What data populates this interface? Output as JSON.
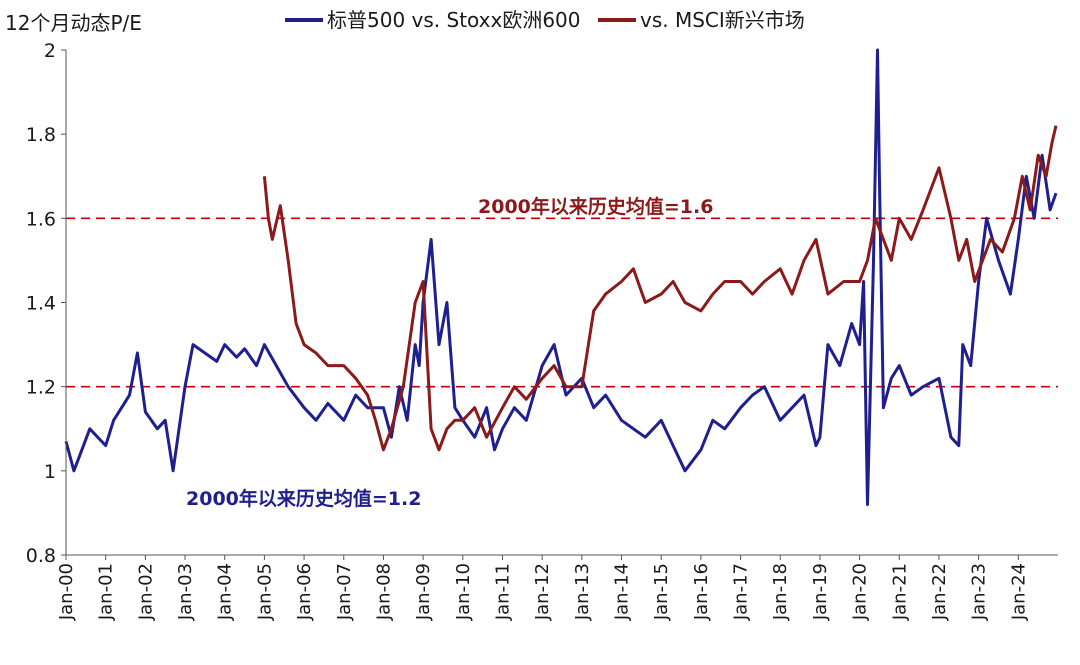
{
  "chart_data": {
    "type": "line",
    "ylabel": "12个月动态P/E",
    "ylim": [
      0.8,
      2.0
    ],
    "yticks": [
      "0.8",
      "1",
      "1.2",
      "1.4",
      "1.6",
      "1.8",
      "2"
    ],
    "yticks_values": [
      0.8,
      1.0,
      1.2,
      1.4,
      1.6,
      1.8,
      2.0
    ],
    "xlim": [
      2000.0,
      2025.0
    ],
    "x_tick_labels": [
      "Jan-00",
      "Jan-01",
      "Jan-02",
      "Jan-03",
      "Jan-04",
      "Jan-05",
      "Jan-06",
      "Jan-07",
      "Jan-08",
      "Jan-09",
      "Jan-10",
      "Jan-11",
      "Jan-12",
      "Jan-13",
      "Jan-14",
      "Jan-15",
      "Jan-16",
      "Jan-17",
      "Jan-18",
      "Jan-19",
      "Jan-20",
      "Jan-21",
      "Jan-22",
      "Jan-23",
      "Jan-24"
    ],
    "x_tick_values": [
      2000,
      2001,
      2002,
      2003,
      2004,
      2005,
      2006,
      2007,
      2008,
      2009,
      2010,
      2011,
      2012,
      2013,
      2014,
      2015,
      2016,
      2017,
      2018,
      2019,
      2020,
      2021,
      2022,
      2023,
      2024
    ],
    "grid": false,
    "legend_position": "top",
    "series": [
      {
        "name": "标普500 vs. Stoxx欧洲600",
        "color": "#1f1f8f",
        "x": [
          2000.0,
          2000.2,
          2000.4,
          2000.6,
          2000.8,
          2001.0,
          2001.2,
          2001.4,
          2001.6,
          2001.8,
          2002.0,
          2002.3,
          2002.5,
          2002.7,
          2003.0,
          2003.2,
          2003.5,
          2003.8,
          2004.0,
          2004.3,
          2004.5,
          2004.8,
          2005.0,
          2005.3,
          2005.6,
          2006.0,
          2006.3,
          2006.6,
          2007.0,
          2007.3,
          2007.6,
          2008.0,
          2008.2,
          2008.4,
          2008.6,
          2008.8,
          2008.9,
          2009.0,
          2009.2,
          2009.4,
          2009.6,
          2009.8,
          2010.0,
          2010.3,
          2010.6,
          2010.8,
          2011.0,
          2011.3,
          2011.6,
          2012.0,
          2012.3,
          2012.6,
          2013.0,
          2013.3,
          2013.6,
          2014.0,
          2014.3,
          2014.6,
          2015.0,
          2015.3,
          2015.6,
          2016.0,
          2016.3,
          2016.6,
          2017.0,
          2017.3,
          2017.6,
          2018.0,
          2018.3,
          2018.6,
          2018.9,
          2019.0,
          2019.2,
          2019.5,
          2019.8,
          2020.0,
          2020.1,
          2020.2,
          2020.35,
          2020.45,
          2020.5,
          2020.6,
          2020.8,
          2021.0,
          2021.3,
          2021.6,
          2022.0,
          2022.3,
          2022.5,
          2022.6,
          2022.8,
          2023.0,
          2023.2,
          2023.5,
          2023.8,
          2024.0,
          2024.2,
          2024.4,
          2024.6,
          2024.8,
          2024.95
        ],
        "values": [
          1.07,
          1.0,
          1.05,
          1.1,
          1.08,
          1.06,
          1.12,
          1.15,
          1.18,
          1.28,
          1.14,
          1.1,
          1.12,
          1.0,
          1.2,
          1.3,
          1.28,
          1.26,
          1.3,
          1.27,
          1.29,
          1.25,
          1.3,
          1.25,
          1.2,
          1.15,
          1.12,
          1.16,
          1.12,
          1.18,
          1.15,
          1.15,
          1.08,
          1.2,
          1.12,
          1.3,
          1.25,
          1.4,
          1.55,
          1.3,
          1.4,
          1.15,
          1.12,
          1.08,
          1.15,
          1.05,
          1.1,
          1.15,
          1.12,
          1.25,
          1.3,
          1.18,
          1.22,
          1.15,
          1.18,
          1.12,
          1.1,
          1.08,
          1.12,
          1.06,
          1.0,
          1.05,
          1.12,
          1.1,
          1.15,
          1.18,
          1.2,
          1.12,
          1.15,
          1.18,
          1.06,
          1.08,
          1.3,
          1.25,
          1.35,
          1.3,
          1.45,
          0.92,
          1.5,
          2.0,
          1.7,
          1.15,
          1.22,
          1.25,
          1.18,
          1.2,
          1.22,
          1.08,
          1.06,
          1.3,
          1.25,
          1.45,
          1.6,
          1.5,
          1.42,
          1.55,
          1.7,
          1.6,
          1.75,
          1.62,
          1.66
        ]
      },
      {
        "name": "vs. MSCI新兴市场",
        "color": "#8b1a1a",
        "x": [
          2005.0,
          2005.1,
          2005.2,
          2005.4,
          2005.6,
          2005.8,
          2006.0,
          2006.3,
          2006.6,
          2007.0,
          2007.3,
          2007.6,
          2007.8,
          2008.0,
          2008.2,
          2008.5,
          2008.8,
          2009.0,
          2009.2,
          2009.4,
          2009.6,
          2009.8,
          2010.0,
          2010.3,
          2010.6,
          2011.0,
          2011.3,
          2011.6,
          2012.0,
          2012.3,
          2012.6,
          2013.0,
          2013.3,
          2013.6,
          2014.0,
          2014.3,
          2014.6,
          2015.0,
          2015.3,
          2015.6,
          2016.0,
          2016.3,
          2016.6,
          2017.0,
          2017.3,
          2017.6,
          2018.0,
          2018.3,
          2018.6,
          2018.9,
          2019.2,
          2019.6,
          2020.0,
          2020.2,
          2020.4,
          2020.6,
          2020.8,
          2021.0,
          2021.3,
          2021.6,
          2022.0,
          2022.3,
          2022.5,
          2022.7,
          2022.9,
          2023.1,
          2023.3,
          2023.6,
          2023.9,
          2024.1,
          2024.3,
          2024.5,
          2024.7,
          2024.85,
          2024.95
        ],
        "values": [
          1.7,
          1.6,
          1.55,
          1.63,
          1.5,
          1.35,
          1.3,
          1.28,
          1.25,
          1.25,
          1.22,
          1.18,
          1.12,
          1.05,
          1.1,
          1.2,
          1.4,
          1.45,
          1.1,
          1.05,
          1.1,
          1.12,
          1.12,
          1.15,
          1.08,
          1.15,
          1.2,
          1.17,
          1.22,
          1.25,
          1.2,
          1.2,
          1.38,
          1.42,
          1.45,
          1.48,
          1.4,
          1.42,
          1.45,
          1.4,
          1.38,
          1.42,
          1.45,
          1.45,
          1.42,
          1.45,
          1.48,
          1.42,
          1.5,
          1.55,
          1.42,
          1.45,
          1.45,
          1.5,
          1.6,
          1.55,
          1.5,
          1.6,
          1.55,
          1.62,
          1.72,
          1.6,
          1.5,
          1.55,
          1.45,
          1.5,
          1.55,
          1.52,
          1.6,
          1.7,
          1.62,
          1.75,
          1.7,
          1.78,
          1.82
        ]
      }
    ],
    "reference_lines": [
      {
        "value": 1.6,
        "label": "2000年以来历史均值=1.6",
        "color": "#c00000",
        "label_color": "#8b1a1a"
      },
      {
        "value": 1.2,
        "label": "2000年以来历史均值=1.2",
        "color": "#c00000",
        "label_color": "#1f1f8f"
      }
    ]
  }
}
